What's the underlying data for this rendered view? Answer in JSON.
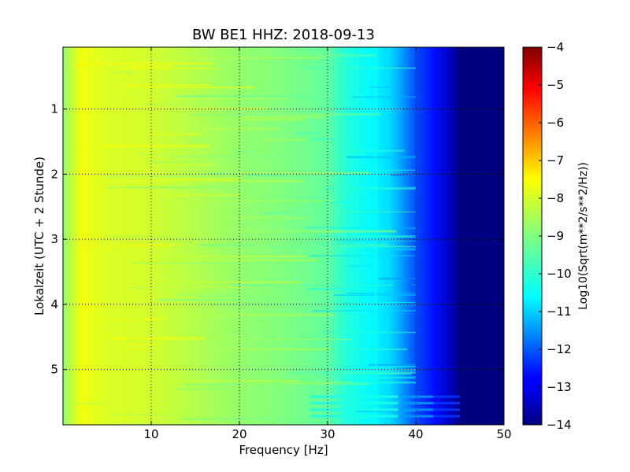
{
  "chart_data": {
    "type": "heatmap",
    "title": "BW BE1 HHZ: 2018-09-13",
    "xlabel": "Frequency [Hz]",
    "ylabel": "Lokalzeit (UTC + 2 Stunde)",
    "xlim": [
      0,
      50
    ],
    "ylim": [
      5.85,
      0.05
    ],
    "y_inverted": true,
    "x_ticks": [
      10,
      20,
      30,
      40,
      50
    ],
    "x_tick_labels": [
      "10",
      "20",
      "30",
      "40",
      "50"
    ],
    "y_ticks": [
      1,
      2,
      3,
      4,
      5
    ],
    "y_tick_labels": [
      "1",
      "2",
      "3",
      "4",
      "5"
    ],
    "grid": true,
    "colormap": "jet",
    "colorbar": {
      "label": "Log10(Sqrt(m**2/s**2/Hz))",
      "range": [
        -14,
        -4
      ],
      "ticks": [
        -4,
        -5,
        -6,
        -7,
        -8,
        -9,
        -10,
        -11,
        -12,
        -13,
        -14
      ],
      "tick_labels": [
        "−4",
        "−5",
        "−6",
        "−7",
        "−8",
        "−9",
        "−10",
        "−11",
        "−12",
        "−13",
        "−14"
      ]
    },
    "approx_spectrum_profile": {
      "frequency_hz": [
        0,
        2,
        5,
        10,
        15,
        20,
        25,
        30,
        32,
        35,
        37,
        38,
        40,
        42,
        44,
        45,
        50
      ],
      "log10_amplitude": [
        -8.8,
        -7.9,
        -8.1,
        -8.2,
        -8.5,
        -8.8,
        -9.0,
        -9.3,
        -9.9,
        -10.3,
        -10.6,
        -11.0,
        -12.0,
        -12.6,
        -13.4,
        -14.0,
        -14.0
      ]
    },
    "banded_times_hours": [
      5.4,
      5.5,
      5.6,
      5.7
    ]
  }
}
